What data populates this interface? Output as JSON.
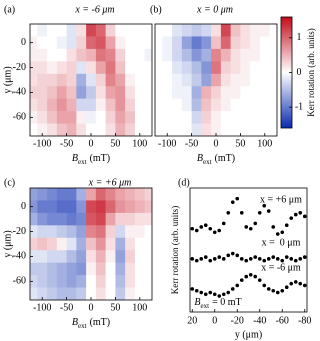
{
  "chart_data": [
    {
      "type": "heatmap",
      "panel_label": "(a)",
      "title": "x = -6 μm",
      "x": [
        -120,
        -100,
        -80,
        -60,
        -40,
        -20,
        0,
        20,
        40,
        60,
        80,
        100,
        120
      ],
      "y": [
        10,
        0,
        -10,
        -20,
        -30,
        -40,
        -50,
        -60,
        -70
      ],
      "z": [
        [
          0,
          -0.1,
          0,
          0,
          -0.2,
          0.2,
          1.2,
          1.0,
          0.3,
          0,
          0,
          0,
          0
        ],
        [
          0.1,
          0,
          0,
          -0.1,
          -0.2,
          0.3,
          1.0,
          1.1,
          0.6,
          0.1,
          0,
          0,
          0
        ],
        [
          0.1,
          0.1,
          0,
          0,
          0.2,
          0.4,
          0.5,
          0.9,
          0.8,
          0.3,
          0,
          0,
          -0.1
        ],
        [
          0.2,
          0.2,
          0.1,
          0.2,
          0.3,
          -0.2,
          0.2,
          0.6,
          0.9,
          0.4,
          0,
          0,
          0
        ],
        [
          0.2,
          0.3,
          0.3,
          0.4,
          0.3,
          -0.6,
          -0.2,
          0.3,
          0.8,
          0.6,
          0.1,
          0,
          0
        ],
        [
          0.3,
          0.3,
          0.4,
          0.6,
          0.4,
          -0.7,
          -0.4,
          0.2,
          0.6,
          0.7,
          0.2,
          0,
          0
        ],
        [
          0.2,
          0.3,
          0.5,
          0.7,
          0.5,
          -0.3,
          -0.3,
          0.1,
          0.4,
          0.7,
          0.3,
          0,
          0
        ],
        [
          0.1,
          0.2,
          0.4,
          0.6,
          0.6,
          0.1,
          -0.1,
          0,
          0.3,
          0.6,
          0.4,
          0,
          0
        ],
        [
          0,
          0.1,
          0.2,
          0.4,
          0.5,
          0.2,
          0,
          0,
          0.2,
          0.5,
          0.3,
          0,
          0
        ]
      ],
      "xlim": [
        -125,
        125
      ],
      "ylim": [
        -75,
        15
      ],
      "xticks": [
        -100,
        -50,
        0,
        50,
        100
      ],
      "yticks": [
        0,
        -20,
        -40,
        -60
      ],
      "xlabel": {
        "symbol": "B",
        "subscript": "ext",
        "unit": "(mT)"
      },
      "ylabel": "y (μm)"
    },
    {
      "type": "heatmap",
      "panel_label": "(b)",
      "title": "x = 0 μm",
      "x": [
        -120,
        -100,
        -80,
        -60,
        -40,
        -20,
        0,
        20,
        40,
        60,
        80,
        100,
        120
      ],
      "y": [
        10,
        0,
        -10,
        -20,
        -30,
        -40,
        -50,
        -60,
        -70
      ],
      "z": [
        [
          0,
          0,
          -0.2,
          -0.3,
          -0.4,
          -0.3,
          0.2,
          1.2,
          0.4,
          0.2,
          0.1,
          0.1,
          0
        ],
        [
          0,
          -0.1,
          -0.3,
          -0.7,
          -1.0,
          -0.8,
          0.4,
          1.0,
          0.3,
          0.2,
          0.1,
          0,
          0
        ],
        [
          0,
          -0.1,
          -0.3,
          -0.5,
          -0.8,
          -0.6,
          0.8,
          0.5,
          0.2,
          0.1,
          0.1,
          0,
          0
        ],
        [
          0,
          0,
          -0.2,
          -0.3,
          -0.5,
          -0.8,
          0.9,
          0.3,
          0.2,
          0.1,
          0,
          0,
          0
        ],
        [
          0,
          0,
          -0.1,
          -0.2,
          -0.4,
          -0.7,
          0.6,
          0.2,
          0.1,
          0.1,
          0,
          0,
          0
        ],
        [
          0,
          0,
          -0.1,
          -0.1,
          -0.6,
          0.5,
          0.3,
          0.1,
          0.1,
          0,
          0,
          0,
          0
        ],
        [
          0,
          0,
          0,
          -0.1,
          -0.5,
          0.4,
          0.2,
          0.1,
          0,
          0,
          0,
          0,
          0
        ],
        [
          0,
          0,
          0,
          0,
          -0.3,
          0.3,
          0.1,
          0,
          0,
          0,
          0,
          0,
          0
        ],
        [
          0,
          0,
          0,
          0,
          -0.2,
          0.2,
          0.1,
          0,
          0,
          0,
          0,
          0,
          0
        ]
      ],
      "xlim": [
        -125,
        125
      ],
      "ylim": [
        -75,
        15
      ],
      "xticks": [
        -100,
        -50,
        0,
        50,
        100
      ],
      "xlabel": {
        "symbol": "B",
        "subscript": "ext",
        "unit": "(mT)"
      }
    },
    {
      "type": "colorbar",
      "label": "Kerr rotation (arb. units)",
      "zlim": [
        -1.6,
        1.6
      ],
      "ticks": [
        1,
        0,
        -1
      ],
      "colors": [
        "#0a2bb0",
        "#ffffff",
        "#c40a1a"
      ]
    },
    {
      "type": "heatmap",
      "panel_label": "(c)",
      "title": "x = +6 μm",
      "x": [
        -120,
        -100,
        -80,
        -60,
        -40,
        -20,
        0,
        20,
        40,
        60,
        80,
        100,
        120
      ],
      "y": [
        10,
        0,
        -10,
        -20,
        -30,
        -40,
        -50,
        -60,
        -70
      ],
      "z": [
        [
          -0.7,
          -0.8,
          -0.9,
          -1.0,
          -1.0,
          -0.6,
          0.6,
          1.0,
          0.8,
          0.6,
          0.5,
          0.4,
          0.3
        ],
        [
          -0.8,
          -1.0,
          -1.0,
          -1.1,
          -1.1,
          -0.8,
          1.2,
          1.3,
          1.0,
          0.7,
          0.6,
          0.5,
          0.4
        ],
        [
          -0.6,
          -0.8,
          -0.9,
          -0.9,
          -1.0,
          -0.9,
          1.1,
          1.2,
          0.6,
          0.3,
          0.3,
          0.2,
          0.2
        ],
        [
          -0.2,
          -0.3,
          -0.3,
          -0.4,
          -0.5,
          -0.7,
          0.8,
          0.9,
          0.3,
          -0.3,
          0.1,
          0.1,
          0
        ],
        [
          0.3,
          0.4,
          0.3,
          0.1,
          -0.2,
          -0.6,
          0.4,
          0.7,
          0.2,
          -0.6,
          0.2,
          0,
          0
        ],
        [
          -0.2,
          -0.2,
          -0.3,
          -0.3,
          -0.5,
          -0.7,
          0.2,
          0.5,
          0.1,
          -0.7,
          0.3,
          0,
          0
        ],
        [
          -0.4,
          -0.4,
          -0.5,
          -0.6,
          -0.7,
          -0.8,
          0.1,
          0.4,
          0,
          -0.6,
          0.2,
          0,
          0
        ],
        [
          -0.3,
          -0.4,
          -0.5,
          -0.6,
          -0.7,
          -0.6,
          0,
          0.3,
          0,
          -0.5,
          0.2,
          0,
          0
        ],
        [
          -0.2,
          -0.3,
          -0.4,
          -0.5,
          -0.5,
          -0.4,
          0,
          0.2,
          0,
          -0.4,
          0.1,
          0,
          0
        ]
      ],
      "xlim": [
        -125,
        125
      ],
      "ylim": [
        -75,
        15
      ],
      "xticks": [
        -100,
        -50,
        0,
        50,
        100
      ],
      "yticks": [
        0,
        -20,
        -40,
        -60
      ],
      "xlabel": {
        "symbol": "B",
        "subscript": "ext",
        "unit": "(mT)"
      },
      "ylabel": "y (μm)"
    },
    {
      "type": "scatter",
      "panel_label": "(d)",
      "x": [
        20,
        16,
        12,
        8,
        4,
        0,
        -4,
        -8,
        -12,
        -16,
        -20,
        -24,
        -28,
        -32,
        -36,
        -40,
        -44,
        -48,
        -52,
        -56,
        -60,
        -64,
        -68,
        -72,
        -76,
        -80
      ],
      "series": [
        {
          "name": "x = +6 μm",
          "color": "#000000",
          "values": [
            4.7,
            4.6,
            4.8,
            4.9,
            4.7,
            4.5,
            4.6,
            5.0,
            5.6,
            6.2,
            6.4,
            5.6,
            4.8,
            4.7,
            5.0,
            5.6,
            6.0,
            5.7,
            4.8,
            4.4,
            4.5,
            4.9,
            5.3,
            5.5,
            5.6,
            5.4
          ]
        },
        {
          "name": "x =  0 μm",
          "color": "#000000",
          "values": [
            3.0,
            2.9,
            3.0,
            3.1,
            2.9,
            3.0,
            3.1,
            3.0,
            3.2,
            3.3,
            3.2,
            3.0,
            2.9,
            3.0,
            3.1,
            3.0,
            2.9,
            3.0,
            3.1,
            3.0,
            2.9,
            3.1,
            3.0,
            2.9,
            3.0,
            3.1
          ]
        },
        {
          "name": "x = -6 μm",
          "color": "#000000",
          "values": [
            1.3,
            1.2,
            1.1,
            1.0,
            1.1,
            1.0,
            0.9,
            1.0,
            1.1,
            1.3,
            1.5,
            1.8,
            2.0,
            2.1,
            2.0,
            1.8,
            1.5,
            1.3,
            1.2,
            1.1,
            1.2,
            1.4,
            1.6,
            1.7,
            1.6,
            1.5
          ]
        }
      ],
      "xlim": [
        22,
        -82
      ],
      "ylim": [
        0,
        7
      ],
      "xticks": [
        20,
        0,
        -20,
        -40,
        -60,
        -80
      ],
      "xlabel": "y (μm)",
      "ylabel": "Kerr rotation (arb. units)",
      "annotation": {
        "symbol": "B",
        "subscript": "ext",
        "text": "= 0 mT"
      }
    }
  ]
}
